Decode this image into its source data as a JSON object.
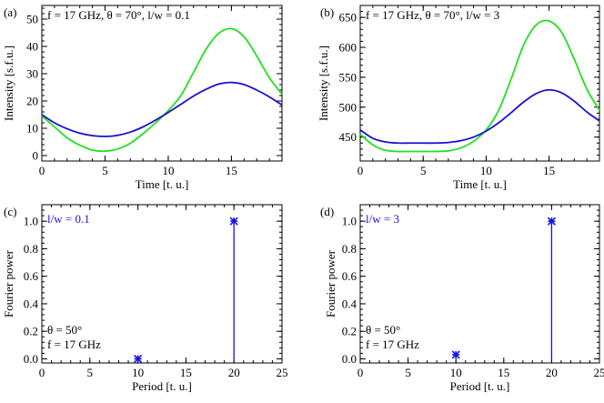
{
  "chart_data": [
    {
      "type": "line",
      "panel": "(a)",
      "annotation": "f = 17 GHz, θ = 70°, l/w = 0.1",
      "xlabel": "Time [t. u.]",
      "ylabel": "Intensity [s.f.u.]",
      "xlim": [
        0,
        19
      ],
      "ylim": [
        -2,
        55
      ],
      "xticks": [
        0,
        5,
        10,
        15
      ],
      "yticks": [
        0,
        10,
        20,
        30,
        40,
        50
      ],
      "series": [
        {
          "color": "#22e022",
          "x": [
            0,
            1,
            2,
            3,
            4,
            5,
            6,
            7,
            8,
            9,
            10,
            11,
            12,
            13,
            14,
            15,
            16,
            17,
            18,
            19
          ],
          "y": [
            14.5,
            10.5,
            6.5,
            3.8,
            2.0,
            1.6,
            2.4,
            4.5,
            8.0,
            12.0,
            16.5,
            22.0,
            30.5,
            39.0,
            44.8,
            46.5,
            43.5,
            36.5,
            28.5,
            22.5
          ]
        },
        {
          "color": "#1a10d0",
          "x": [
            0,
            1,
            2,
            3,
            4,
            5,
            6,
            7,
            8,
            9,
            10,
            11,
            12,
            13,
            14,
            15,
            16,
            17,
            18,
            19
          ],
          "y": [
            15.0,
            12.0,
            9.8,
            8.2,
            7.3,
            7.0,
            7.4,
            8.6,
            10.5,
            13.0,
            15.8,
            18.8,
            21.8,
            24.3,
            26.2,
            26.8,
            26.0,
            24.0,
            21.5,
            18.5
          ]
        }
      ]
    },
    {
      "type": "line",
      "panel": "(b)",
      "annotation": "f = 17 GHz,  θ = 70°,  l/w = 3",
      "xlabel": "Time [t. u.]",
      "ylabel": "Intensity [s.f.u.]",
      "xlim": [
        0,
        19
      ],
      "ylim": [
        410,
        670
      ],
      "xticks": [
        0,
        5,
        10,
        15
      ],
      "yticks": [
        450,
        500,
        550,
        600,
        650
      ],
      "series": [
        {
          "color": "#22e022",
          "x": [
            0,
            1,
            2,
            3,
            4,
            5,
            6,
            7,
            8,
            9,
            10,
            11,
            12,
            13,
            14,
            15,
            16,
            17,
            18,
            19
          ],
          "y": [
            455,
            437,
            428,
            426,
            426,
            426,
            426,
            427,
            432,
            443,
            462,
            495,
            548,
            605,
            638,
            644,
            625,
            580,
            530,
            495
          ]
        },
        {
          "color": "#1a10d0",
          "x": [
            0,
            1,
            2,
            3,
            4,
            5,
            6,
            7,
            8,
            9,
            10,
            11,
            12,
            13,
            14,
            15,
            16,
            17,
            18,
            19
          ],
          "y": [
            462,
            448,
            442,
            440,
            440,
            440,
            440,
            441,
            444,
            450,
            460,
            474,
            491,
            509,
            523,
            529,
            524,
            510,
            492,
            477
          ]
        }
      ]
    },
    {
      "type": "bar",
      "panel": "(c)",
      "annotation_blue": "l/w = 0.1",
      "annotation_theta": "θ = 50°",
      "annotation_freq": "f = 17 GHz",
      "xlabel": "Period [t. u.]",
      "ylabel": "Fourier power",
      "xlim": [
        0,
        25
      ],
      "ylim": [
        -0.03,
        1.12
      ],
      "xticks": [
        0,
        5,
        10,
        15,
        20,
        25
      ],
      "yticks": [
        "0.0",
        "0.2",
        "0.4",
        "0.6",
        "0.8",
        "1.0"
      ],
      "series": [
        {
          "color": "#1a10e0",
          "x": [
            10,
            20
          ],
          "y": [
            0.0,
            1.0
          ]
        }
      ]
    },
    {
      "type": "bar",
      "panel": "(d)",
      "annotation_blue": "l/w = 3",
      "annotation_theta": "θ = 50°",
      "annotation_freq": "f = 17 GHz",
      "xlabel": "Period [t. u.]",
      "ylabel": "Fourier power",
      "xlim": [
        0,
        25
      ],
      "ylim": [
        -0.03,
        1.12
      ],
      "xticks": [
        0,
        5,
        10,
        15,
        20,
        25
      ],
      "yticks": [
        "0.0",
        "0.2",
        "0.4",
        "0.6",
        "0.8",
        "1.0"
      ],
      "series": [
        {
          "color": "#1a10e0",
          "x": [
            10,
            20
          ],
          "y": [
            0.03,
            1.0
          ]
        }
      ]
    }
  ]
}
